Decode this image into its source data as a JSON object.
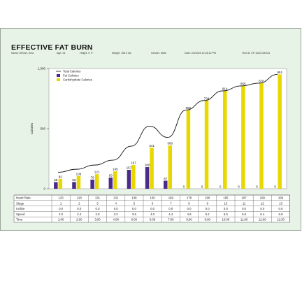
{
  "report": {
    "title": "EFFECTIVE FAT BURN",
    "name": "Name: Weiner, Ezra",
    "age": "Age: 24",
    "height": "Height: 5' 9\"",
    "weight": "Weight: 155.0 lbs",
    "gender": "Gender: Male",
    "date": "Date: 2/4/2025 12:28:12 PM",
    "test_id": "Test ID: CP-1320-000011"
  },
  "chart_data": {
    "type": "bar",
    "ylabel": "Calories",
    "ylim": [
      0,
      1000
    ],
    "yticks": [
      0,
      500,
      1000
    ],
    "yticklabels": [
      "0",
      "500",
      "1,000"
    ],
    "stages": [
      1,
      2,
      3,
      4,
      5,
      6,
      7,
      8,
      9,
      10,
      11,
      12,
      13
    ],
    "legend": [
      "Total Calories",
      "Fat Calories",
      "Carbohydrate Calories"
    ],
    "legend_placement": "top-left",
    "colors": {
      "fat": "#4b2a8c",
      "carb": "#e8d800",
      "total": "#111111"
    },
    "series": [
      {
        "name": "Fat Calories",
        "values": [
          55,
          56,
          76,
          93,
          157,
          180,
          67,
          0,
          0,
          0,
          0,
          0,
          0
        ]
      },
      {
        "name": "Carbohydrate Calories",
        "values": [
          82,
          106,
          121,
          145,
          197,
          341,
          360,
          655,
          734,
          814,
          855,
          878,
          951
        ]
      }
    ],
    "fat_labels": [
      "55",
      "56",
      "76",
      "93",
      "157",
      "180",
      "67",
      "0",
      "0",
      "0",
      "0",
      "0",
      "0"
    ],
    "carb_labels": [
      "82",
      "106",
      "121",
      "145",
      "197",
      "341",
      "360",
      "655",
      "734",
      "814",
      "855",
      "878",
      "951"
    ],
    "total": [
      137,
      162,
      197,
      238,
      354,
      521,
      427,
      655,
      734,
      814,
      855,
      878,
      951
    ]
  },
  "table": {
    "rows": [
      {
        "label": "Heart Rate",
        "values": [
          "123",
          "118",
          "131",
          "131",
          "138",
          "160",
          "169",
          "178",
          "190",
          "195",
          "197",
          "199",
          "199"
        ]
      },
      {
        "label": "Stage",
        "values": [
          "1",
          "2",
          "3",
          "4",
          "5",
          "6",
          "7",
          "8",
          "9",
          "10",
          "11",
          "12",
          "13"
        ]
      },
      {
        "label": "Incline",
        "values": [
          "0.0",
          "0.0",
          "0.0",
          "0.0",
          "0.0",
          "0.0",
          "0.0",
          "0.0",
          "0.0",
          "0.0",
          "0.0",
          "0.0",
          "0.0"
        ]
      },
      {
        "label": "Speed",
        "values": [
          "2.0",
          "2.4",
          "2.8",
          "3.2",
          "3.6",
          "4.0",
          "4.4",
          "4.8",
          "5.2",
          "5.6",
          "6.0",
          "6.4",
          "6.8"
        ]
      },
      {
        "label": "Time",
        "values": [
          "1:00",
          "2:00",
          "3:00",
          "4:00",
          "5:00",
          "6:00",
          "7:00",
          "8:00",
          "9:00",
          "10:00",
          "11:00",
          "12:00",
          "12:30"
        ]
      }
    ]
  }
}
